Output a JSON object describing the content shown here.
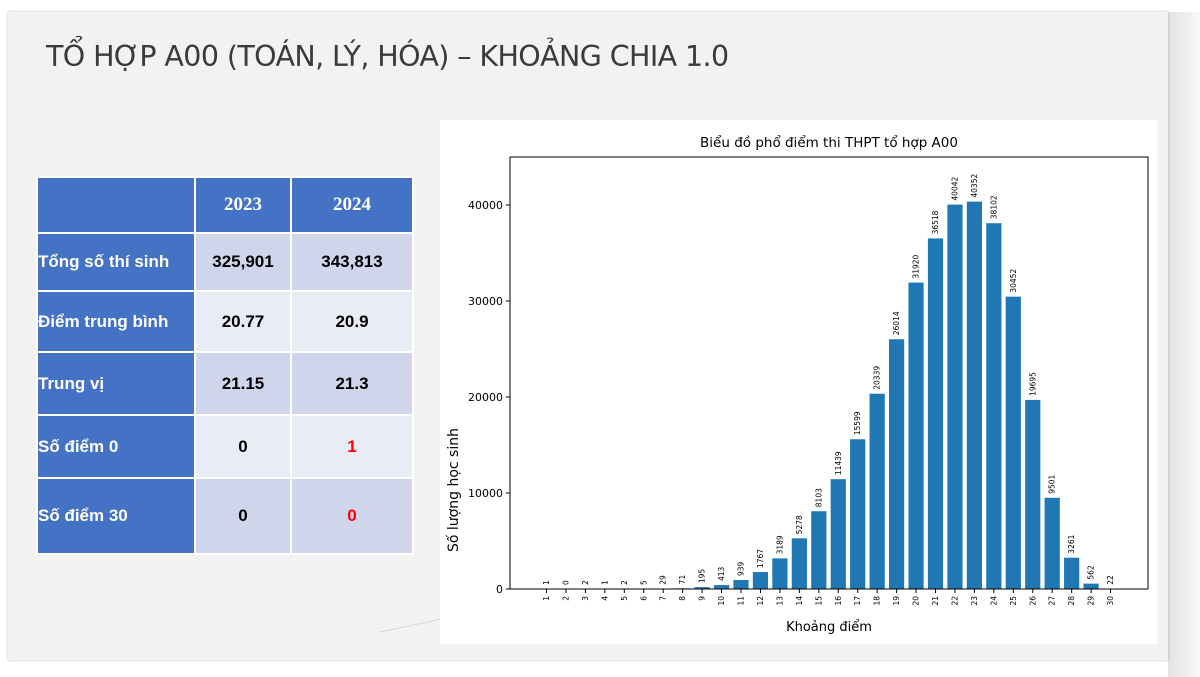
{
  "slide": {
    "title": "TỔ HỢP A00 (TOÁN, LÝ, HÓA) – KHOẢNG CHIA 1.0"
  },
  "table": {
    "headers": [
      "",
      "2023",
      "2024"
    ],
    "rows": [
      {
        "label": "Tổng số thí sinh",
        "v2023": "325,901",
        "v2024": "343,813"
      },
      {
        "label": "Điểm trung bình",
        "v2023": "20.77",
        "v2024": "20.9"
      },
      {
        "label": "Trung vị",
        "v2023": "21.15",
        "v2024": "21.3"
      },
      {
        "label": "Số điểm 0",
        "v2023": "0",
        "v2024": "1"
      },
      {
        "label": "Số điểm 30",
        "v2023": "0",
        "v2024": "0"
      }
    ],
    "colors": {
      "header_bg": "#4472c4",
      "cell_odd": "#cfd5ea",
      "cell_even": "#e9ebf5",
      "highlight": "#ff0000"
    }
  },
  "chart_data": {
    "type": "bar",
    "title": "Biểu đồ phổ điểm thi THPT tổ hợp A00",
    "xlabel": "Khoảng điểm",
    "ylabel": "Số lượng học sinh",
    "categories": [
      "1",
      "2",
      "3",
      "4",
      "5",
      "6",
      "7",
      "8",
      "9",
      "10",
      "11",
      "12",
      "13",
      "14",
      "15",
      "16",
      "17",
      "18",
      "19",
      "20",
      "21",
      "22",
      "23",
      "24",
      "25",
      "26",
      "27",
      "28",
      "29",
      "30"
    ],
    "values": [
      1,
      0,
      2,
      1,
      2,
      5,
      29,
      71,
      195,
      413,
      939,
      1767,
      3189,
      5278,
      8103,
      11439,
      15599,
      20339,
      26014,
      31920,
      36518,
      40042,
      40352,
      38102,
      30452,
      19695,
      9501,
      3261,
      562,
      22
    ],
    "ylim": [
      0,
      45000
    ],
    "yticks": [
      0,
      10000,
      20000,
      30000,
      40000
    ],
    "bar_color": "#1f77b4",
    "grid": false,
    "data_labels": true
  }
}
